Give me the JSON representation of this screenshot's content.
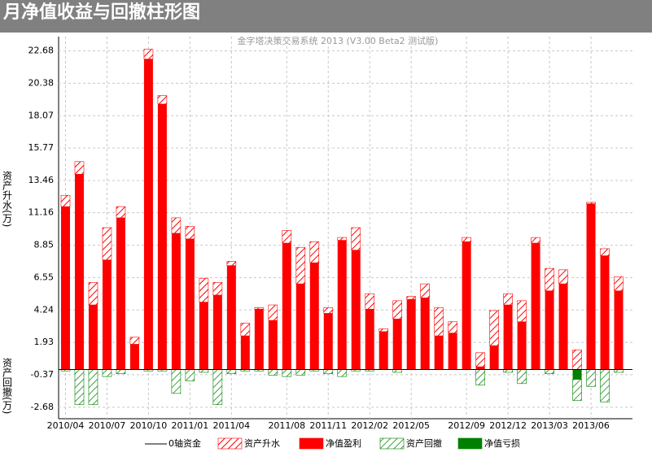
{
  "chart_data": {
    "type": "bar",
    "title": "月净值收益与回撤柱形图",
    "subtitle": "金字塔决策交易系统 2013 (V3.00 Beta2 测试版)",
    "y_label_top": "资产升水(万)",
    "y_label_bottom": "资产回撤(万)",
    "zero_line": {
      "name": "0轴资金",
      "color": "#000000"
    },
    "categories": [
      "2010/04",
      null,
      null,
      "2010/07",
      null,
      null,
      "2010/10",
      null,
      null,
      "2011/01",
      null,
      null,
      "2011/04",
      null,
      null,
      null,
      "2011/08",
      null,
      null,
      "2011/11",
      null,
      null,
      "2012/02",
      null,
      null,
      "2012/05",
      null,
      null,
      null,
      "2012/09",
      null,
      null,
      "2012/12",
      null,
      null,
      "2013/03",
      null,
      null,
      "2013/06",
      null,
      null
    ],
    "series": [
      {
        "name": "资产升水",
        "color": "#ff0000",
        "pattern": "hatch",
        "values": [
          0.8,
          0.9,
          1.6,
          2.3,
          0.8,
          0.5,
          0.7,
          0.6,
          1.1,
          0.9,
          1.7,
          0.9,
          0.3,
          0.9,
          0.1,
          1.1,
          0.9,
          2.6,
          1.5,
          0.4,
          0.2,
          1.6,
          1.1,
          0.2,
          1.3,
          0.2,
          1.0,
          2.0,
          0.8,
          0.3,
          1.0,
          2.5,
          0.8,
          1.5,
          0.4,
          1.6,
          1.0,
          1.4,
          0.1,
          0.5,
          1.0
        ]
      },
      {
        "name": "净值盈利",
        "color": "#ff0000",
        "pattern": "solid",
        "values": [
          11.6,
          13.9,
          4.6,
          7.8,
          10.8,
          1.8,
          22.1,
          18.9,
          9.7,
          9.3,
          4.8,
          5.3,
          7.4,
          2.4,
          4.3,
          3.5,
          9.0,
          6.1,
          7.6,
          4.0,
          9.2,
          8.5,
          4.3,
          2.7,
          3.6,
          5.0,
          5.1,
          2.4,
          2.6,
          9.1,
          0.2,
          1.7,
          4.6,
          3.4,
          9.0,
          5.6,
          6.1,
          0,
          11.8,
          8.1,
          5.6
        ]
      },
      {
        "name": "资产回撤",
        "color": "#008000",
        "pattern": "hatch",
        "values": [
          -0.1,
          -2.5,
          -2.5,
          -0.5,
          -0.3,
          0,
          -0.1,
          -0.1,
          -1.7,
          -0.8,
          -0.2,
          -2.5,
          -0.3,
          -0.1,
          -0.1,
          -0.4,
          -0.5,
          -0.4,
          -0.1,
          -0.3,
          -0.5,
          -0.1,
          -0.1,
          0,
          -0.2,
          0,
          0,
          0,
          0,
          0,
          -1.1,
          0,
          -0.2,
          -1.0,
          0,
          -0.3,
          0,
          -1.5,
          -1.2,
          -2.3,
          -0.2
        ]
      },
      {
        "name": "净值亏损",
        "color": "#008000",
        "pattern": "solid",
        "values": [
          0,
          0,
          0,
          0,
          0,
          0,
          0,
          0,
          0,
          0,
          0,
          0,
          0,
          0,
          0,
          0,
          0,
          0,
          0,
          0,
          0,
          0,
          0,
          0,
          0,
          0,
          0,
          0,
          0,
          0,
          0,
          0,
          0,
          0,
          0,
          0,
          0,
          -0.7,
          0,
          0,
          0
        ]
      }
    ],
    "ylim": [
      -3.5,
      23.7
    ],
    "yticks": [
      -2.68,
      -0.37,
      1.93,
      4.24,
      6.55,
      8.85,
      11.16,
      13.46,
      15.77,
      18.07,
      20.38,
      22.68
    ],
    "grid": true
  }
}
